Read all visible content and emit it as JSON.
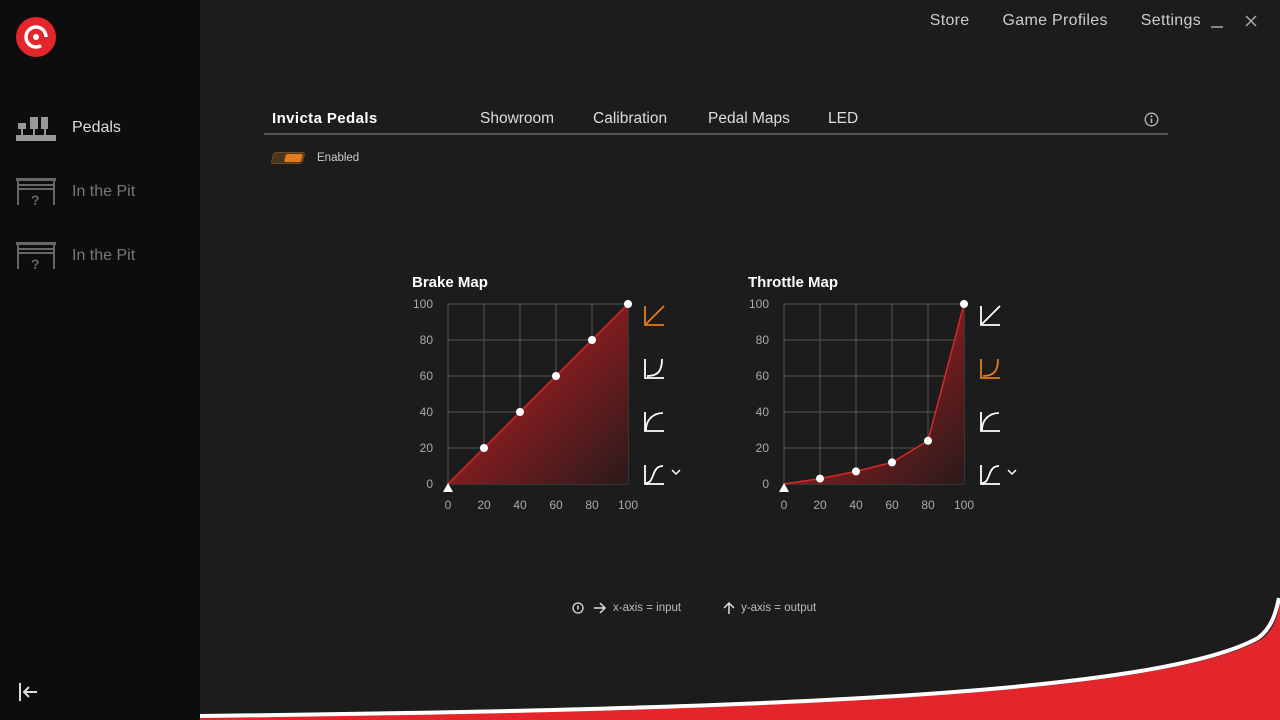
{
  "sidebar": {
    "items": [
      {
        "label": "Pedals",
        "icon": "pedals-icon",
        "active": true
      },
      {
        "label": "In the Pit",
        "icon": "garage-unknown-icon"
      },
      {
        "label": "In the Pit",
        "icon": "garage-unknown-icon"
      }
    ]
  },
  "topnav": {
    "store": "Store",
    "profiles": "Game Profiles",
    "settings": "Settings"
  },
  "device": {
    "title": "Invicta Pedals",
    "tabs": [
      "Showroom",
      "Calibration",
      "Pedal Maps",
      "LED"
    ],
    "enabled_label": "Enabled",
    "enabled": true
  },
  "legend": {
    "x": "x-axis = input",
    "y": "y-axis = output"
  },
  "colors": {
    "accent": "#e07d1d",
    "brand": "#e3262b",
    "fill": "#9a1f22"
  },
  "chart_data": [
    {
      "type": "area",
      "title": "Brake Map",
      "x": [
        0,
        20,
        40,
        60,
        80,
        100
      ],
      "y": [
        0,
        20,
        40,
        60,
        80,
        100
      ],
      "xlim": [
        0,
        100
      ],
      "ylim": [
        0,
        100
      ],
      "xticks": [
        "0",
        "20",
        "40",
        "60",
        "80",
        "100"
      ],
      "yticks": [
        "0",
        "20",
        "40",
        "60",
        "80",
        "100"
      ],
      "grid": true,
      "selected_preset": "linear"
    },
    {
      "type": "area",
      "title": "Throttle Map",
      "x": [
        0,
        20,
        40,
        60,
        80,
        100
      ],
      "y": [
        0,
        3,
        7,
        12,
        24,
        100
      ],
      "xlim": [
        0,
        100
      ],
      "ylim": [
        0,
        100
      ],
      "xticks": [
        "0",
        "20",
        "40",
        "60",
        "80",
        "100"
      ],
      "yticks": [
        "0",
        "20",
        "40",
        "60",
        "80",
        "100"
      ],
      "grid": true,
      "selected_preset": "exponential"
    }
  ]
}
